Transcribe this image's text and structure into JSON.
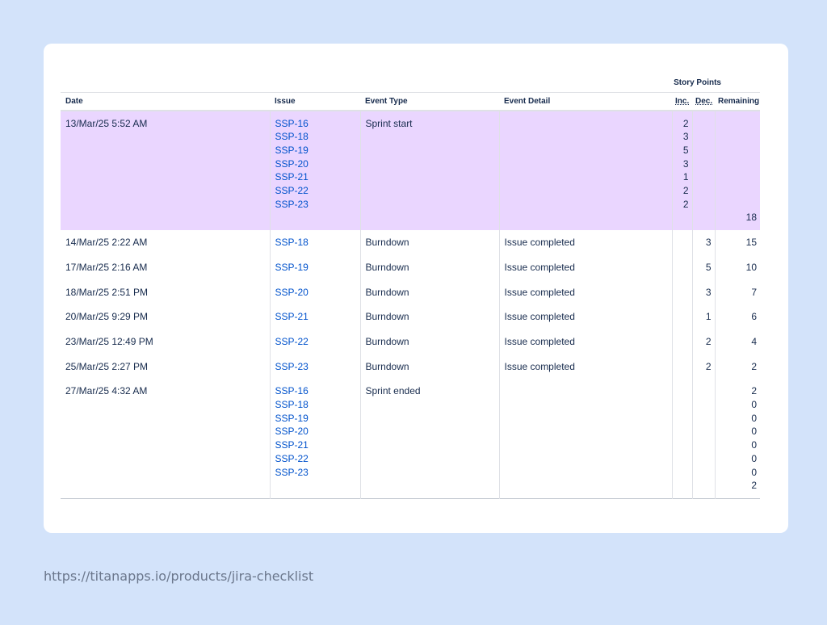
{
  "table": {
    "group_header": "Story Points",
    "columns": {
      "date": "Date",
      "issue": "Issue",
      "event_type": "Event Type",
      "event_detail": "Event Detail",
      "inc": "Inc.",
      "dec": "Dec.",
      "remaining": "Remaining"
    },
    "rows": [
      {
        "date": "13/Mar/25 5:52 AM",
        "issues": [
          "SSP-16",
          "SSP-18",
          "SSP-19",
          "SSP-20",
          "SSP-21",
          "SSP-22",
          "SSP-23"
        ],
        "event_type": "Sprint start",
        "event_detail": "",
        "inc": [
          "2",
          "3",
          "5",
          "3",
          "1",
          "2",
          "2"
        ],
        "dec": [],
        "remaining": [
          "",
          "",
          "",
          "",
          "",
          "",
          "",
          "18"
        ]
      },
      {
        "date": "14/Mar/25 2:22 AM",
        "issues": [
          "SSP-18"
        ],
        "event_type": "Burndown",
        "event_detail": "Issue completed",
        "inc": [],
        "dec": [
          "3"
        ],
        "remaining": [
          "15"
        ]
      },
      {
        "date": "17/Mar/25 2:16 AM",
        "issues": [
          "SSP-19"
        ],
        "event_type": "Burndown",
        "event_detail": "Issue completed",
        "inc": [],
        "dec": [
          "5"
        ],
        "remaining": [
          "10"
        ]
      },
      {
        "date": "18/Mar/25 2:51 PM",
        "issues": [
          "SSP-20"
        ],
        "event_type": "Burndown",
        "event_detail": "Issue completed",
        "inc": [],
        "dec": [
          "3"
        ],
        "remaining": [
          "7"
        ]
      },
      {
        "date": "20/Mar/25 9:29 PM",
        "issues": [
          "SSP-21"
        ],
        "event_type": "Burndown",
        "event_detail": "Issue completed",
        "inc": [],
        "dec": [
          "1"
        ],
        "remaining": [
          "6"
        ]
      },
      {
        "date": "23/Mar/25 12:49 PM",
        "issues": [
          "SSP-22"
        ],
        "event_type": "Burndown",
        "event_detail": "Issue completed",
        "inc": [],
        "dec": [
          "2"
        ],
        "remaining": [
          "4"
        ]
      },
      {
        "date": "25/Mar/25 2:27 PM",
        "issues": [
          "SSP-23"
        ],
        "event_type": "Burndown",
        "event_detail": "Issue completed",
        "inc": [],
        "dec": [
          "2"
        ],
        "remaining": [
          "2"
        ]
      },
      {
        "date": "27/Mar/25 4:32 AM",
        "issues": [
          "SSP-16",
          "SSP-18",
          "SSP-19",
          "SSP-20",
          "SSP-21",
          "SSP-22",
          "SSP-23"
        ],
        "event_type": "Sprint ended",
        "event_detail": "",
        "inc": [],
        "dec": [],
        "remaining": [
          "2",
          "0",
          "0",
          "0",
          "0",
          "0",
          "0",
          "2"
        ]
      }
    ]
  },
  "footer": {
    "url": "https://titanapps.io/products/jira-checklist"
  },
  "colors": {
    "background": "#d3e3fa",
    "card": "#ffffff",
    "sprint_start_highlight": "#ead6ff",
    "link": "#0052cc"
  }
}
